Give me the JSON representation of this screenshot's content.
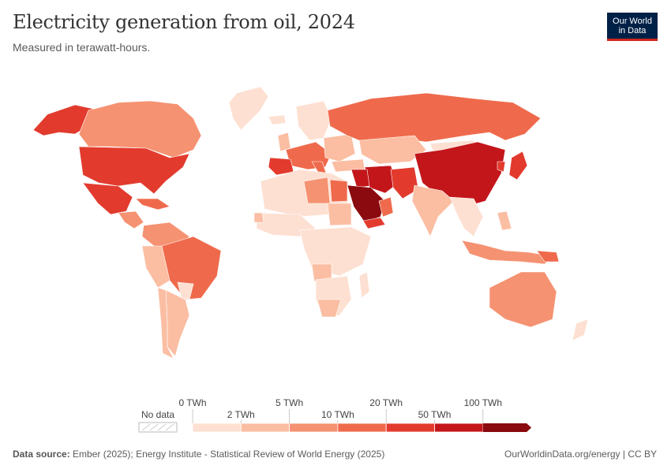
{
  "header": {
    "title": "Electricity generation from oil, 2024",
    "subtitle": "Measured in terawatt-hours."
  },
  "logo": {
    "line1": "Our World",
    "line2": "in Data"
  },
  "legend": {
    "no_data_label": "No data",
    "top_labels": [
      "0 TWh",
      "5 TWh",
      "20 TWh",
      "100 TWh"
    ],
    "bottom_labels": [
      "2 TWh",
      "10 TWh",
      "50 TWh"
    ],
    "bin_colors": [
      "#fde0d2",
      "#fbbea3",
      "#f59272",
      "#ef6a4c",
      "#e23b2e",
      "#c3161b",
      "#8a0a0f"
    ]
  },
  "footer": {
    "source_label": "Data source:",
    "source_text": "Ember (2025); Energy Institute - Statistical Review of World Energy (2025)",
    "credit": "OurWorldinData.org/energy | CC BY"
  }
}
